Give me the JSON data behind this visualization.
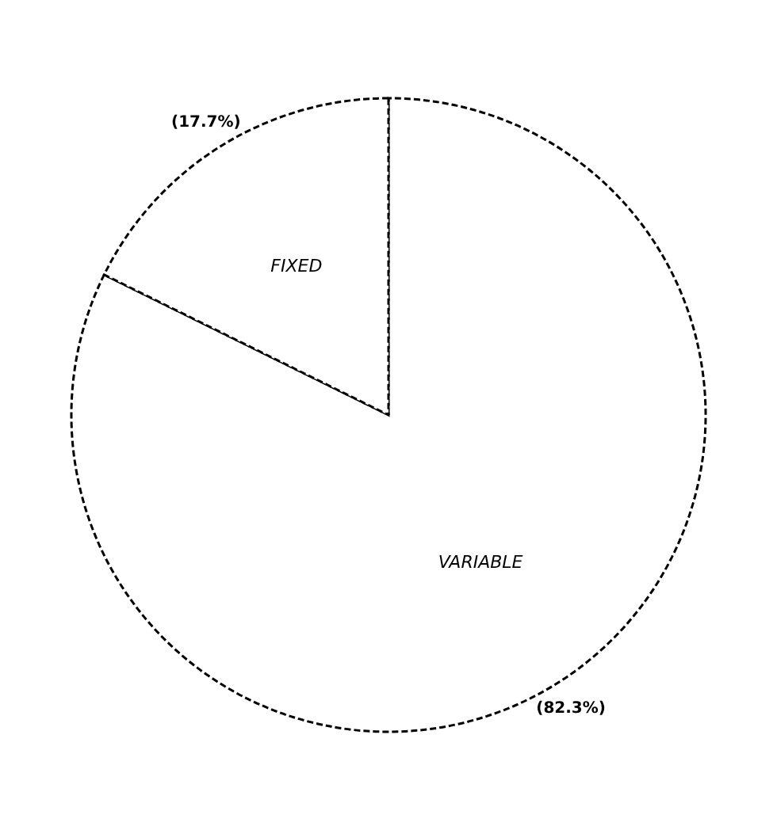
{
  "chart_data": {
    "type": "pie",
    "categories": [
      "VARIABLE",
      "FIXED"
    ],
    "values": [
      82.3,
      17.7
    ],
    "colors": [
      "#ffffff",
      "#ffffff"
    ],
    "value_labels": [
      "(82.3%)",
      "(17.7%)"
    ]
  }
}
